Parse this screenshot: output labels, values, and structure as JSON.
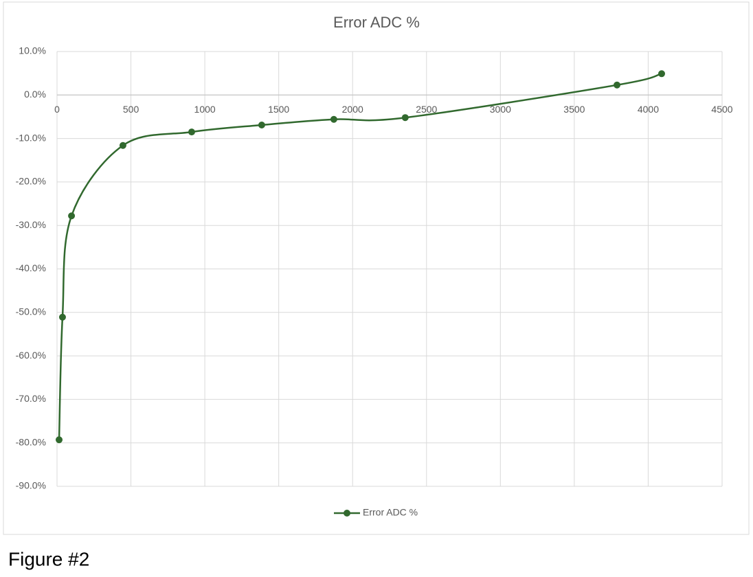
{
  "chart_data": {
    "type": "scatter-smooth",
    "title": "Error ADC %",
    "series": [
      {
        "name": "Error ADC %",
        "color": "#31692e",
        "x": [
          14,
          37,
          98,
          446,
          911,
          1385,
          1873,
          2356,
          3789,
          4091
        ],
        "values": [
          -79.3,
          -51.1,
          -27.8,
          -11.6,
          -8.5,
          -6.9,
          -5.6,
          -5.2,
          2.3,
          4.9
        ]
      }
    ],
    "xlim": [
      0,
      4500
    ],
    "xticks": [
      0,
      500,
      1000,
      1500,
      2000,
      2500,
      3000,
      3500,
      4000,
      4500
    ],
    "ylim": [
      -90,
      10
    ],
    "yticks": [
      {
        "value": -90,
        "label": "-90.0%"
      },
      {
        "value": -80,
        "label": "-80.0%"
      },
      {
        "value": -70,
        "label": "-70.0%"
      },
      {
        "value": -60,
        "label": "-60.0%"
      },
      {
        "value": -50,
        "label": "-50.0%"
      },
      {
        "value": -40,
        "label": "-40.0%"
      },
      {
        "value": -30,
        "label": "-30.0%"
      },
      {
        "value": -20,
        "label": "-20.0%"
      },
      {
        "value": -10,
        "label": "-10.0%"
      },
      {
        "value": 0,
        "label": "0.0%"
      },
      {
        "value": 10,
        "label": "10.0%"
      }
    ],
    "grid": true,
    "legend": "bottom"
  },
  "figure_caption": "Figure #2"
}
